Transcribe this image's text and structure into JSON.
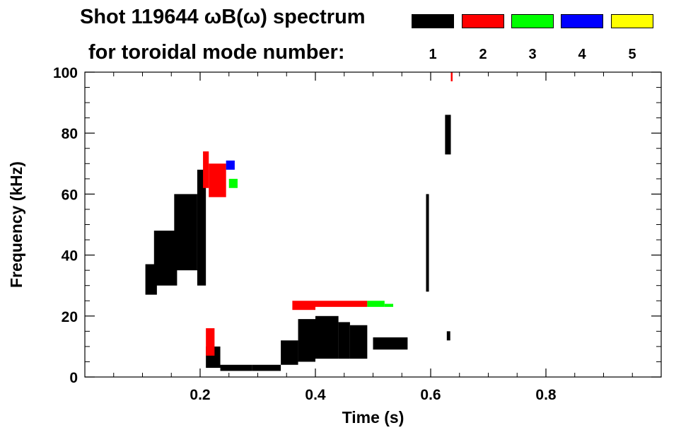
{
  "title_line1": "Shot 119644 ωB(ω) spectrum",
  "title_line2": "for toroidal mode number:",
  "legend": [
    {
      "mode": "1",
      "color": "#000000"
    },
    {
      "mode": "2",
      "color": "#ff0000"
    },
    {
      "mode": "3",
      "color": "#00ff00"
    },
    {
      "mode": "4",
      "color": "#0000ff"
    },
    {
      "mode": "5",
      "color": "#ffff00"
    }
  ],
  "chart_data": {
    "type": "heatmap",
    "title": "Shot 119644 ωB(ω) spectrum",
    "xlabel": "Time (s)",
    "ylabel": "Frequency (kHz)",
    "xlim": [
      0.0,
      1.0
    ],
    "ylim": [
      0,
      100
    ],
    "xticks": [
      0.2,
      0.4,
      0.6,
      0.8
    ],
    "xtick_labels": [
      "0.2",
      "0.4",
      "0.6",
      "0.8"
    ],
    "yticks": [
      0,
      20,
      40,
      60,
      80,
      100
    ],
    "ytick_labels": [
      "0",
      "20",
      "40",
      "60",
      "80",
      "100"
    ],
    "series": [
      {
        "name": "n=1",
        "color": "#000000",
        "regions": [
          {
            "t": [
              0.105,
              0.125
            ],
            "f": [
              27,
              37
            ]
          },
          {
            "t": [
              0.12,
              0.16
            ],
            "f": [
              30,
              48
            ]
          },
          {
            "t": [
              0.155,
              0.195
            ],
            "f": [
              35,
              60
            ]
          },
          {
            "t": [
              0.195,
              0.21
            ],
            "f": [
              30,
              68
            ]
          },
          {
            "t": [
              0.21,
              0.235
            ],
            "f": [
              3,
              10
            ]
          },
          {
            "t": [
              0.235,
              0.29
            ],
            "f": [
              2,
              4
            ]
          },
          {
            "t": [
              0.29,
              0.34
            ],
            "f": [
              2,
              4
            ]
          },
          {
            "t": [
              0.34,
              0.37
            ],
            "f": [
              4,
              12
            ]
          },
          {
            "t": [
              0.37,
              0.4
            ],
            "f": [
              5,
              19
            ]
          },
          {
            "t": [
              0.4,
              0.44
            ],
            "f": [
              6,
              20
            ]
          },
          {
            "t": [
              0.44,
              0.46
            ],
            "f": [
              6,
              18
            ]
          },
          {
            "t": [
              0.46,
              0.49
            ],
            "f": [
              6,
              17
            ]
          },
          {
            "t": [
              0.5,
              0.56
            ],
            "f": [
              9,
              13
            ]
          },
          {
            "t": [
              0.592,
              0.597
            ],
            "f": [
              28,
              60
            ]
          },
          {
            "t": [
              0.625,
              0.635
            ],
            "f": [
              73,
              86
            ]
          },
          {
            "t": [
              0.628,
              0.634
            ],
            "f": [
              12,
              15
            ]
          }
        ]
      },
      {
        "name": "n=2",
        "color": "#ff0000",
        "regions": [
          {
            "t": [
              0.205,
              0.215
            ],
            "f": [
              62,
              74
            ]
          },
          {
            "t": [
              0.215,
              0.245
            ],
            "f": [
              59,
              70
            ]
          },
          {
            "t": [
              0.21,
              0.225
            ],
            "f": [
              7,
              16
            ]
          },
          {
            "t": [
              0.36,
              0.4
            ],
            "f": [
              22,
              25
            ]
          },
          {
            "t": [
              0.4,
              0.49
            ],
            "f": [
              23,
              25
            ]
          },
          {
            "t": [
              0.635,
              0.638
            ],
            "f": [
              97,
              100
            ]
          }
        ]
      },
      {
        "name": "n=3",
        "color": "#00ff00",
        "regions": [
          {
            "t": [
              0.25,
              0.265
            ],
            "f": [
              62,
              65
            ]
          },
          {
            "t": [
              0.49,
              0.52
            ],
            "f": [
              23,
              25
            ]
          },
          {
            "t": [
              0.52,
              0.535
            ],
            "f": [
              23,
              24
            ]
          }
        ]
      },
      {
        "name": "n=4",
        "color": "#0000ff",
        "regions": [
          {
            "t": [
              0.245,
              0.26
            ],
            "f": [
              68,
              71
            ]
          }
        ]
      },
      {
        "name": "n=5",
        "color": "#ffff00",
        "regions": []
      }
    ]
  }
}
